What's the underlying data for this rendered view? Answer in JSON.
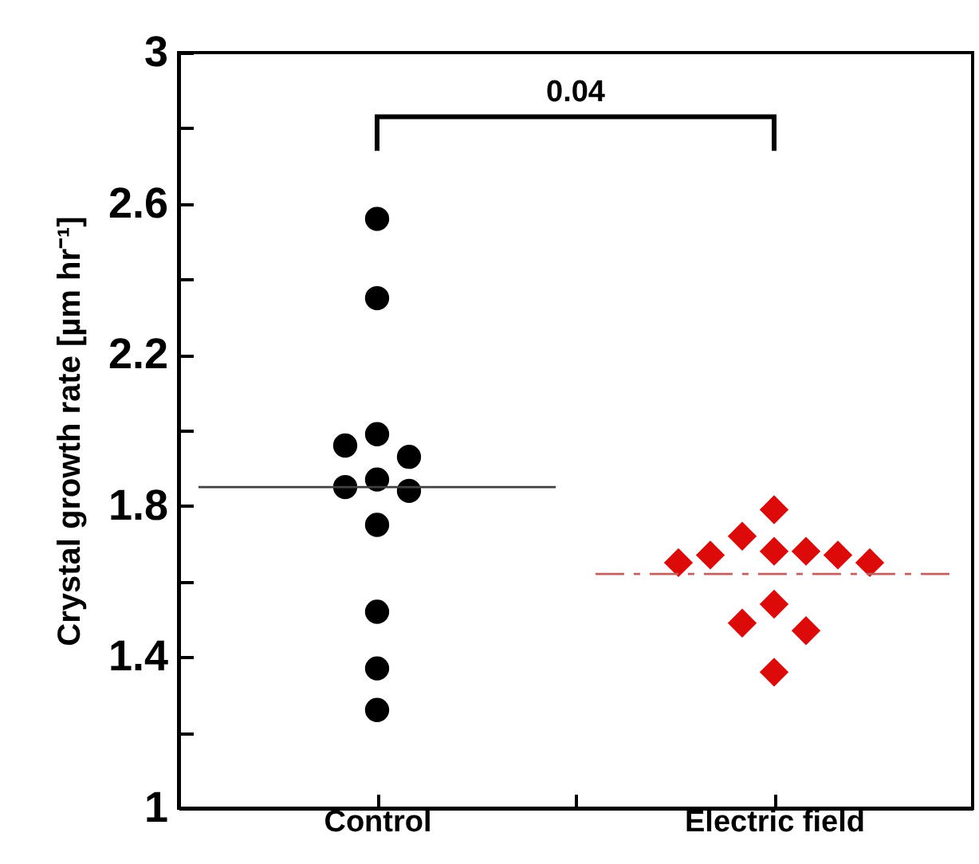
{
  "chart_data": {
    "type": "scatter",
    "ylabel": "Crystal growth rate [µm hr⁻¹]",
    "categories": [
      "Control",
      "Electric field"
    ],
    "ylim": [
      1,
      3
    ],
    "yticks": [
      1,
      {
        "value": 1.2,
        "label": null
      },
      1.4,
      {
        "value": 1.6,
        "label": null
      },
      1.8,
      {
        "value": 2.0,
        "label": null
      },
      2.2,
      {
        "value": 2.4,
        "label": null
      },
      2.6,
      {
        "value": 2.8,
        "label": null
      },
      3
    ],
    "grid": false,
    "annotations": [
      "0.04"
    ],
    "series": [
      {
        "marker": "circle",
        "color": "#000000",
        "x": [
          "Control",
          "Control",
          "Control",
          "Control",
          "Control",
          "Control",
          "Control",
          "Control",
          "Control",
          "Control",
          "Control",
          "Control"
        ],
        "values": [
          2.56,
          2.35,
          1.99,
          1.96,
          1.93,
          1.87,
          1.85,
          1.84,
          1.75,
          1.52,
          1.37,
          1.26
        ]
      },
      {
        "marker": "diamond",
        "color": "#dd0a0a",
        "x": [
          "Electric field",
          "Electric field",
          "Electric field",
          "Electric field",
          "Electric field",
          "Electric field",
          "Electric field",
          "Electric field",
          "Electric field",
          "Electric field",
          "Electric field",
          "Electric field"
        ],
        "values": [
          1.79,
          1.72,
          1.68,
          1.68,
          1.67,
          1.67,
          1.65,
          1.65,
          1.54,
          1.49,
          1.47,
          1.36
        ]
      }
    ],
    "ref_lines": [
      {
        "axis": "y",
        "value": 1.85,
        "color": "#404040",
        "line_style": "solid"
      },
      {
        "axis": "y",
        "value": 1.62,
        "color": "#c06060",
        "line_style": "dashed"
      }
    ]
  }
}
